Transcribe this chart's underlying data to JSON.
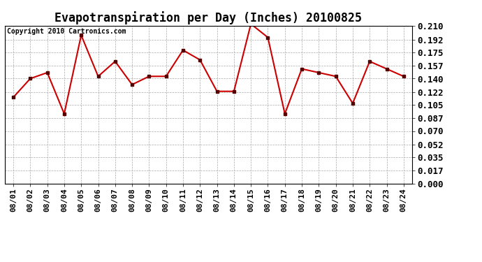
{
  "title": "Evapotranspiration per Day (Inches) 20100825",
  "copyright": "Copyright 2010 Cartronics.com",
  "x_labels": [
    "08/01",
    "08/02",
    "08/03",
    "08/04",
    "08/05",
    "08/06",
    "08/07",
    "08/08",
    "08/09",
    "08/10",
    "08/11",
    "08/12",
    "08/13",
    "08/14",
    "08/15",
    "08/16",
    "08/17",
    "08/18",
    "08/19",
    "08/20",
    "08/21",
    "08/22",
    "08/23",
    "08/24"
  ],
  "y_values": [
    0.115,
    0.14,
    0.148,
    0.093,
    0.198,
    0.143,
    0.163,
    0.132,
    0.143,
    0.143,
    0.178,
    0.165,
    0.123,
    0.123,
    0.213,
    0.195,
    0.093,
    0.153,
    0.148,
    0.143,
    0.107,
    0.163,
    0.153,
    0.143
  ],
  "line_color": "#cc0000",
  "marker": "s",
  "marker_size": 3,
  "marker_color": "#550000",
  "ylim": [
    0.0,
    0.21
  ],
  "yticks": [
    0.0,
    0.017,
    0.035,
    0.052,
    0.07,
    0.087,
    0.105,
    0.122,
    0.14,
    0.157,
    0.175,
    0.192,
    0.21
  ],
  "grid_color": "#aaaaaa",
  "bg_color": "white",
  "plot_bg_color": "white",
  "title_fontsize": 12,
  "copyright_fontsize": 7,
  "tick_fontsize": 8,
  "ytick_fontsize": 9,
  "line_width": 1.5
}
